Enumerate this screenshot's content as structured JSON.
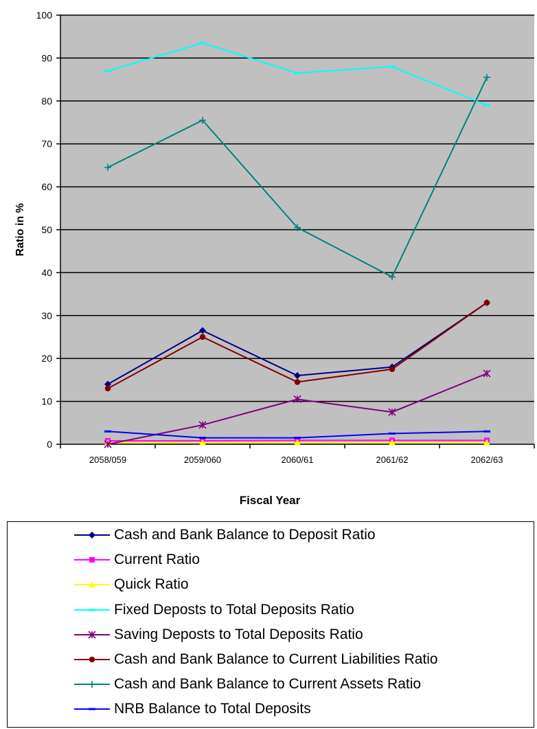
{
  "chart_data": {
    "type": "line",
    "title": "",
    "xlabel": "Fiscal Year",
    "ylabel": "Ratio in %",
    "ylim": [
      0,
      100
    ],
    "yticks": [
      0,
      10,
      20,
      30,
      40,
      50,
      60,
      70,
      80,
      90,
      100
    ],
    "grid": true,
    "legend_position": "bottom",
    "categories": [
      "2058/059",
      "2059/060",
      "2060/61",
      "2061/62",
      "2062/63"
    ],
    "series": [
      {
        "name": "Cash and Bank Balance to Deposit Ratio",
        "color": "#000080",
        "marker": "diamond",
        "values": [
          14,
          26.5,
          16,
          18,
          33
        ]
      },
      {
        "name": "Current  Ratio",
        "color": "#ff00ff",
        "marker": "square",
        "values": [
          0.8,
          0.8,
          0.9,
          0.9,
          0.9
        ]
      },
      {
        "name": "Quick Ratio",
        "color": "#ffff00",
        "marker": "triangle",
        "values": [
          0.4,
          0.4,
          0.4,
          0.4,
          0.4
        ]
      },
      {
        "name": "Fixed Deposts to Total Deposits Ratio",
        "color": "#00ffff",
        "marker": "dash",
        "values": [
          87,
          93.5,
          86.5,
          88,
          79
        ]
      },
      {
        "name": "Saving Deposts to Total Deposits Ratio",
        "color": "#800080",
        "marker": "star",
        "values": [
          0,
          4.5,
          10.5,
          7.5,
          16.5
        ]
      },
      {
        "name": "Cash and Bank Balance to Current Liabilities Ratio",
        "color": "#800000",
        "marker": "circle",
        "values": [
          13,
          25,
          14.5,
          17.5,
          33
        ]
      },
      {
        "name": "Cash and Bank Balance to Current Assets Ratio",
        "color": "#008080",
        "marker": "plus",
        "values": [
          64.5,
          75.5,
          50.5,
          39,
          85.5
        ]
      },
      {
        "name": "NRB Balance to Total Deposits",
        "color": "#0000ff",
        "marker": "dash",
        "values": [
          3,
          1.5,
          1.5,
          2.5,
          3
        ]
      }
    ]
  }
}
